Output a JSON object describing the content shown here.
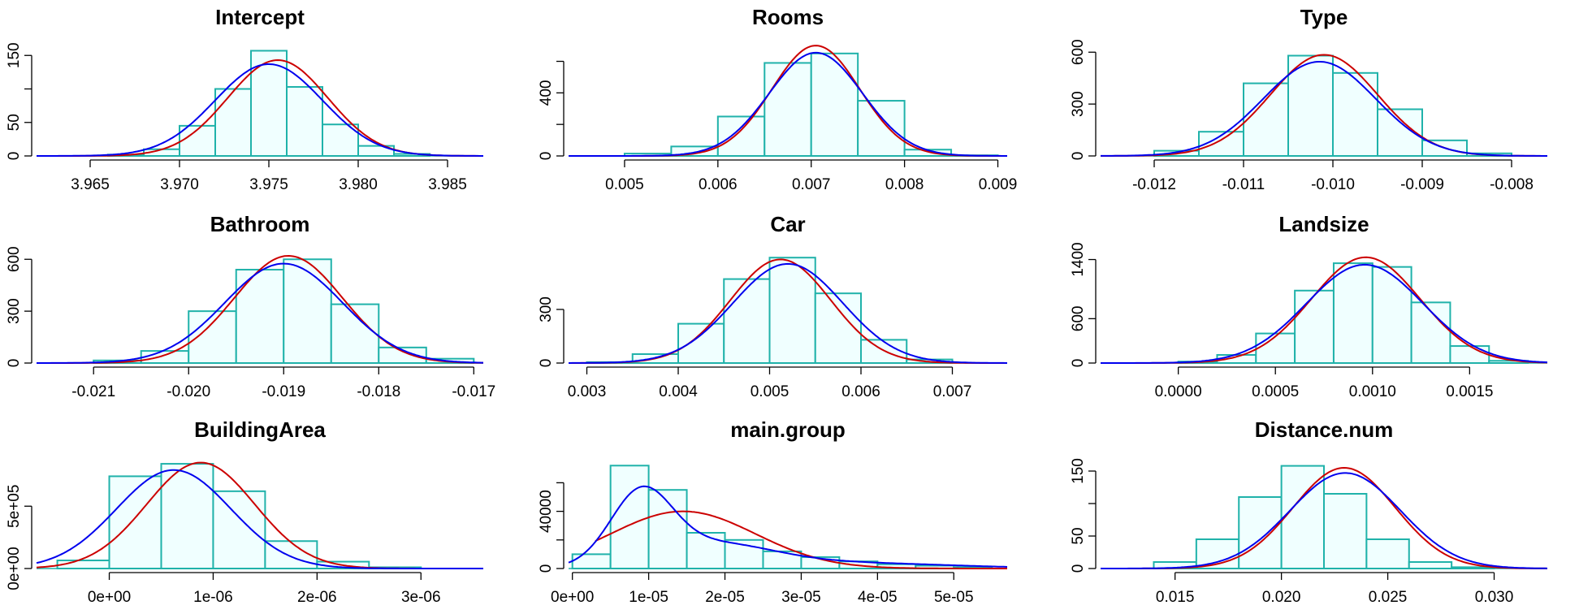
{
  "colors": {
    "bar_fill": "#F0FFFF",
    "bar_stroke": "#20B2AA",
    "normal_curve": "#CC0000",
    "density_curve": "#0000EE"
  },
  "chart_data": [
    {
      "type": "bar",
      "title": "Intercept",
      "bin_edges": [
        3.966,
        3.968,
        3.97,
        3.972,
        3.974,
        3.976,
        3.978,
        3.98,
        3.982,
        3.984
      ],
      "values": [
        2,
        10,
        45,
        100,
        157,
        103,
        47,
        15,
        3
      ],
      "xlim": [
        3.962,
        3.987
      ],
      "ylim": [
        0,
        160
      ],
      "xticks": [
        3.965,
        3.97,
        3.975,
        3.98,
        3.985
      ],
      "xtick_labels": [
        "3.965",
        "3.970",
        "3.975",
        "3.980",
        "3.985"
      ],
      "yticks": [
        0,
        50,
        100,
        150
      ],
      "ytick_labels": [
        "0",
        "50",
        "",
        "150"
      ],
      "normal_curve": {
        "mean": 3.9755,
        "sd": 0.0028,
        "peak": 143
      },
      "density_curve": {
        "components": [
          {
            "mean": 3.975,
            "sd": 0.003,
            "peak": 137
          }
        ]
      }
    },
    {
      "type": "bar",
      "title": "Rooms",
      "bin_edges": [
        0.005,
        0.0055,
        0.006,
        0.0065,
        0.007,
        0.0075,
        0.008,
        0.0085,
        0.009
      ],
      "values": [
        15,
        60,
        250,
        590,
        650,
        350,
        40,
        4
      ],
      "xlim": [
        0.0044,
        0.0091
      ],
      "ylim": [
        0,
        680
      ],
      "xticks": [
        0.005,
        0.006,
        0.007,
        0.008,
        0.009
      ],
      "xtick_labels": [
        "0.005",
        "0.006",
        "0.007",
        "0.008",
        "0.009"
      ],
      "yticks": [
        0,
        200,
        400,
        600
      ],
      "ytick_labels": [
        "0",
        "",
        "400",
        ""
      ],
      "normal_curve": {
        "mean": 0.00705,
        "sd": 0.00047,
        "peak": 700
      },
      "density_curve": {
        "components": [
          {
            "mean": 0.00705,
            "sd": 0.0005,
            "peak": 655
          }
        ]
      }
    },
    {
      "type": "bar",
      "title": "Type",
      "bin_edges": [
        -0.012,
        -0.0115,
        -0.011,
        -0.0105,
        -0.01,
        -0.0095,
        -0.009,
        -0.0085,
        -0.008
      ],
      "values": [
        30,
        140,
        420,
        580,
        480,
        270,
        90,
        15
      ],
      "xlim": [
        -0.0126,
        -0.0076
      ],
      "ylim": [
        0,
        620
      ],
      "xticks": [
        -0.012,
        -0.011,
        -0.01,
        -0.009,
        -0.008
      ],
      "xtick_labels": [
        "-0.012",
        "-0.011",
        "-0.010",
        "-0.009",
        "-0.008"
      ],
      "yticks": [
        0,
        300,
        600
      ],
      "ytick_labels": [
        "0",
        "300",
        "600"
      ],
      "normal_curve": {
        "mean": -0.0101,
        "sd": 0.0006,
        "peak": 585
      },
      "density_curve": {
        "components": [
          {
            "mean": -0.01015,
            "sd": 0.00063,
            "peak": 545
          }
        ]
      }
    },
    {
      "type": "bar",
      "title": "Bathroom",
      "bin_edges": [
        -0.021,
        -0.0205,
        -0.02,
        -0.0195,
        -0.019,
        -0.0185,
        -0.018,
        -0.0175,
        -0.017
      ],
      "values": [
        15,
        70,
        300,
        540,
        600,
        340,
        90,
        25
      ],
      "xlim": [
        -0.0216,
        -0.0169
      ],
      "ylim": [
        0,
        620
      ],
      "xticks": [
        -0.021,
        -0.02,
        -0.019,
        -0.018,
        -0.017
      ],
      "xtick_labels": [
        "-0.021",
        "-0.020",
        "-0.019",
        "-0.018",
        "-0.017"
      ],
      "yticks": [
        0,
        300,
        600
      ],
      "ytick_labels": [
        "0",
        "300",
        "600"
      ],
      "normal_curve": {
        "mean": -0.01895,
        "sd": 0.00057,
        "peak": 620
      },
      "density_curve": {
        "components": [
          {
            "mean": -0.019,
            "sd": 0.00062,
            "peak": 575
          }
        ]
      }
    },
    {
      "type": "bar",
      "title": "Car",
      "bin_edges": [
        0.003,
        0.0035,
        0.004,
        0.0045,
        0.005,
        0.0055,
        0.006,
        0.0065,
        0.007
      ],
      "values": [
        5,
        50,
        220,
        470,
        590,
        390,
        130,
        20
      ],
      "xlim": [
        0.0028,
        0.0076
      ],
      "ylim": [
        0,
        600
      ],
      "xticks": [
        0.003,
        0.004,
        0.005,
        0.006,
        0.007
      ],
      "xtick_labels": [
        "0.003",
        "0.004",
        "0.005",
        "0.006",
        "0.007"
      ],
      "yticks": [
        0,
        300
      ],
      "ytick_labels": [
        "0",
        "300"
      ],
      "normal_curve": {
        "mean": 0.00512,
        "sd": 0.00055,
        "peak": 580
      },
      "density_curve": {
        "components": [
          {
            "mean": 0.0052,
            "sd": 0.0006,
            "peak": 555
          }
        ]
      }
    },
    {
      "type": "bar",
      "title": "Landsize",
      "bin_edges": [
        0.0,
        0.0002,
        0.0004,
        0.0006,
        0.0008,
        0.001,
        0.0012,
        0.0014,
        0.0016,
        0.0018
      ],
      "values": [
        20,
        110,
        400,
        980,
        1350,
        1300,
        820,
        230,
        30
      ],
      "xlim": [
        -0.0004,
        0.0019
      ],
      "ylim": [
        0,
        1450
      ],
      "xticks": [
        0.0,
        0.0005,
        0.001,
        0.0015
      ],
      "xtick_labels": [
        "0.0000",
        "0.0005",
        "0.0010",
        "0.0015"
      ],
      "yticks": [
        0,
        600,
        1400
      ],
      "ytick_labels": [
        "0",
        "600",
        "1400"
      ],
      "normal_curve": {
        "mean": 0.000965,
        "sd": 0.00028,
        "peak": 1430
      },
      "density_curve": {
        "components": [
          {
            "mean": 0.00096,
            "sd": 0.0003,
            "peak": 1330
          }
        ]
      }
    },
    {
      "type": "bar",
      "title": "BuildingArea",
      "bin_edges": [
        -5e-07,
        0,
        5e-07,
        1e-06,
        1.5e-06,
        2e-06,
        2.5e-06,
        3e-06
      ],
      "values": [
        65000,
        740000,
        840000,
        620000,
        220000,
        55000,
        10000
      ],
      "xlim": [
        -7e-07,
        3.6e-06
      ],
      "ylim": [
        0,
        860000
      ],
      "xticks": [
        0,
        1e-06,
        2e-06,
        3e-06
      ],
      "xtick_labels": [
        "0e+00",
        "1e-06",
        "2e-06",
        "3e-06"
      ],
      "yticks": [
        0,
        500000
      ],
      "ytick_labels": [
        "0e+00",
        "5e+05"
      ],
      "normal_curve": {
        "mean": 8.8e-07,
        "sd": 5.2e-07,
        "peak": 850000
      },
      "density_curve": {
        "components": [
          {
            "mean": 6.2e-07,
            "sd": 5.5e-07,
            "peak": 790000
          }
        ]
      }
    },
    {
      "type": "bar",
      "title": "main.group",
      "bin_edges": [
        0,
        5e-06,
        1e-05,
        1.5e-05,
        2e-05,
        2.5e-05,
        3e-05,
        3.5e-05,
        4e-05,
        4.5e-05,
        5e-05,
        5.5e-05
      ],
      "values": [
        10000,
        72000,
        55000,
        25000,
        20000,
        12000,
        8000,
        5000,
        3000,
        2000,
        1000
      ],
      "xlim": [
        -5e-07,
        5.7e-05
      ],
      "ylim": [
        0,
        75000
      ],
      "xticks": [
        0,
        1e-05,
        2e-05,
        3e-05,
        4e-05,
        5e-05
      ],
      "xtick_labels": [
        "0e+00",
        "1e-05",
        "2e-05",
        "3e-05",
        "4e-05",
        "5e-05"
      ],
      "yticks": [
        0,
        20000,
        40000,
        60000
      ],
      "ytick_labels": [
        "0",
        "",
        "40000",
        ""
      ],
      "normal_curve": {
        "mean": 1.45e-05,
        "sd": 9.5e-06,
        "peak": 40000,
        "xmin": 3e-06
      },
      "density_curve": {
        "components": [
          {
            "mean": 9e-06,
            "sd": 4e-06,
            "peak": 48000
          },
          {
            "mean": 1.8e-05,
            "sd": 8e-06,
            "peak": 16000
          },
          {
            "mean": 3.5e-05,
            "sd": 1.4e-05,
            "peak": 4000
          }
        ]
      }
    },
    {
      "type": "bar",
      "title": "Distance.num",
      "bin_edges": [
        0.014,
        0.016,
        0.018,
        0.02,
        0.022,
        0.024,
        0.026,
        0.028,
        0.03
      ],
      "values": [
        10,
        45,
        110,
        158,
        115,
        45,
        10,
        2
      ],
      "xlim": [
        0.0115,
        0.0325
      ],
      "ylim": [
        0,
        165
      ],
      "xticks": [
        0.015,
        0.02,
        0.025,
        0.03
      ],
      "xtick_labels": [
        "0.015",
        "0.020",
        "0.025",
        "0.030"
      ],
      "yticks": [
        0,
        50,
        100,
        150
      ],
      "ytick_labels": [
        "0",
        "50",
        "",
        "150"
      ],
      "normal_curve": {
        "mean": 0.02295,
        "sd": 0.0024,
        "peak": 155
      },
      "density_curve": {
        "components": [
          {
            "mean": 0.023,
            "sd": 0.0026,
            "peak": 147
          }
        ]
      }
    }
  ]
}
